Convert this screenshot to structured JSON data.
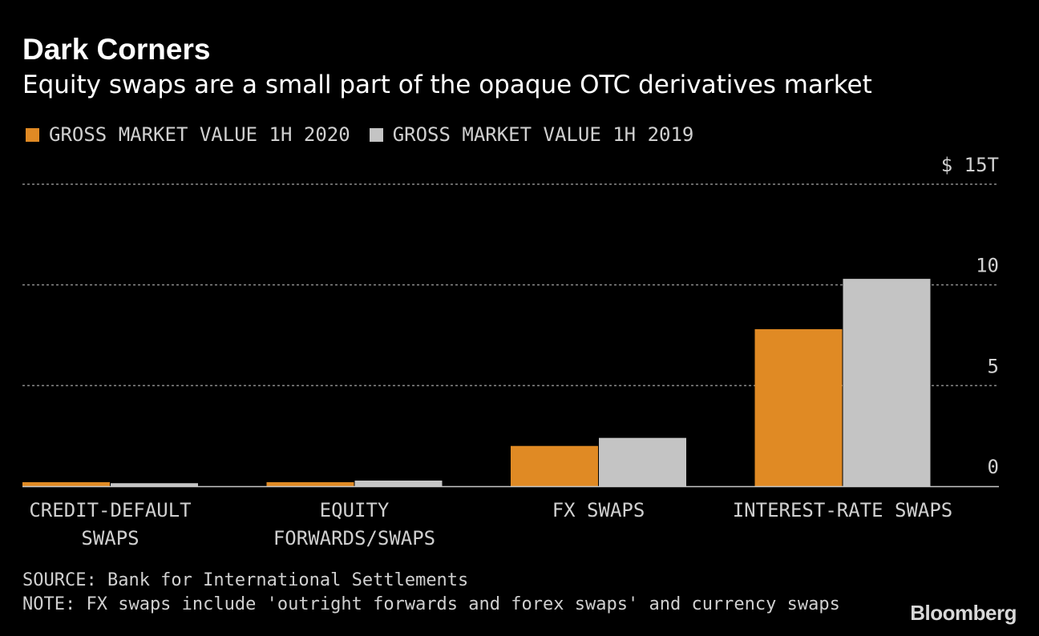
{
  "title": "Dark Corners",
  "subtitle": "Equity swaps are a small part of the opaque OTC derivatives market",
  "legend": [
    {
      "label": "GROSS MARKET VALUE 1H 2020",
      "color": "#e08a24"
    },
    {
      "label": "GROSS MARKET VALUE 1H 2019",
      "color": "#c4c4c4"
    }
  ],
  "footer": {
    "source": "SOURCE: Bank for International Settlements",
    "note": "NOTE: FX swaps include 'outright forwards and forex swaps' and currency swaps"
  },
  "brand": "Bloomberg",
  "colors": {
    "background": "#000000",
    "grid": "#8a8a8a",
    "axis": "#c8c8c8",
    "text": "#d0d0d0"
  },
  "chart_data": {
    "type": "bar",
    "title": "Dark Corners",
    "subtitle": "Equity swaps are a small part of the opaque OTC derivatives market",
    "categories": [
      [
        "CREDIT-DEFAULT",
        "SWAPS"
      ],
      [
        "EQUITY",
        "FORWARDS/SWAPS"
      ],
      [
        "FX SWAPS"
      ],
      [
        "INTEREST-RATE SWAPS"
      ]
    ],
    "series": [
      {
        "name": "GROSS MARKET VALUE 1H 2020",
        "color": "#e08a24",
        "values": [
          0.2,
          0.2,
          2.0,
          7.8
        ]
      },
      {
        "name": "GROSS MARKET VALUE 1H 2019",
        "color": "#c4c4c4",
        "values": [
          0.15,
          0.28,
          2.4,
          10.3
        ]
      }
    ],
    "y_ticks": [
      {
        "value": 15,
        "label": "$ 15T"
      },
      {
        "value": 10,
        "label": "10"
      },
      {
        "value": 5,
        "label": "5"
      },
      {
        "value": 0,
        "label": "0"
      }
    ],
    "ylim": [
      0,
      15
    ],
    "xlabel": "",
    "ylabel": "",
    "grid": true,
    "legend_position": "top-left"
  }
}
